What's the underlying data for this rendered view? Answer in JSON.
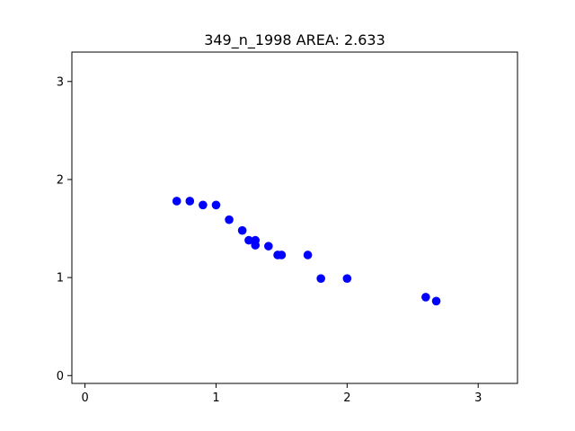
{
  "chart_data": {
    "type": "scatter",
    "title": "349_n_1998 AREA: 2.633",
    "xlabel": "",
    "ylabel": "",
    "xlim": [
      -0.1,
      3.3
    ],
    "ylim": [
      -0.08,
      3.3
    ],
    "xticks": [
      0,
      1,
      2,
      3
    ],
    "yticks": [
      0,
      1,
      2,
      3
    ],
    "xtick_labels": [
      "0",
      "1",
      "2",
      "3"
    ],
    "ytick_labels": [
      "0",
      "1",
      "2",
      "3"
    ],
    "grid": false,
    "legend": "none",
    "series": [
      {
        "color": "#0000ff",
        "points": [
          {
            "x": 0.7,
            "y": 1.78
          },
          {
            "x": 0.8,
            "y": 1.78
          },
          {
            "x": 0.9,
            "y": 1.74
          },
          {
            "x": 1.0,
            "y": 1.74
          },
          {
            "x": 1.1,
            "y": 1.59
          },
          {
            "x": 1.2,
            "y": 1.48
          },
          {
            "x": 1.25,
            "y": 1.38
          },
          {
            "x": 1.3,
            "y": 1.38
          },
          {
            "x": 1.3,
            "y": 1.33
          },
          {
            "x": 1.4,
            "y": 1.32
          },
          {
            "x": 1.5,
            "y": 1.23
          },
          {
            "x": 1.47,
            "y": 1.23
          },
          {
            "x": 1.7,
            "y": 1.23
          },
          {
            "x": 1.8,
            "y": 0.99
          },
          {
            "x": 2.0,
            "y": 0.99
          },
          {
            "x": 2.6,
            "y": 0.8
          },
          {
            "x": 2.68,
            "y": 0.76
          }
        ]
      }
    ]
  }
}
